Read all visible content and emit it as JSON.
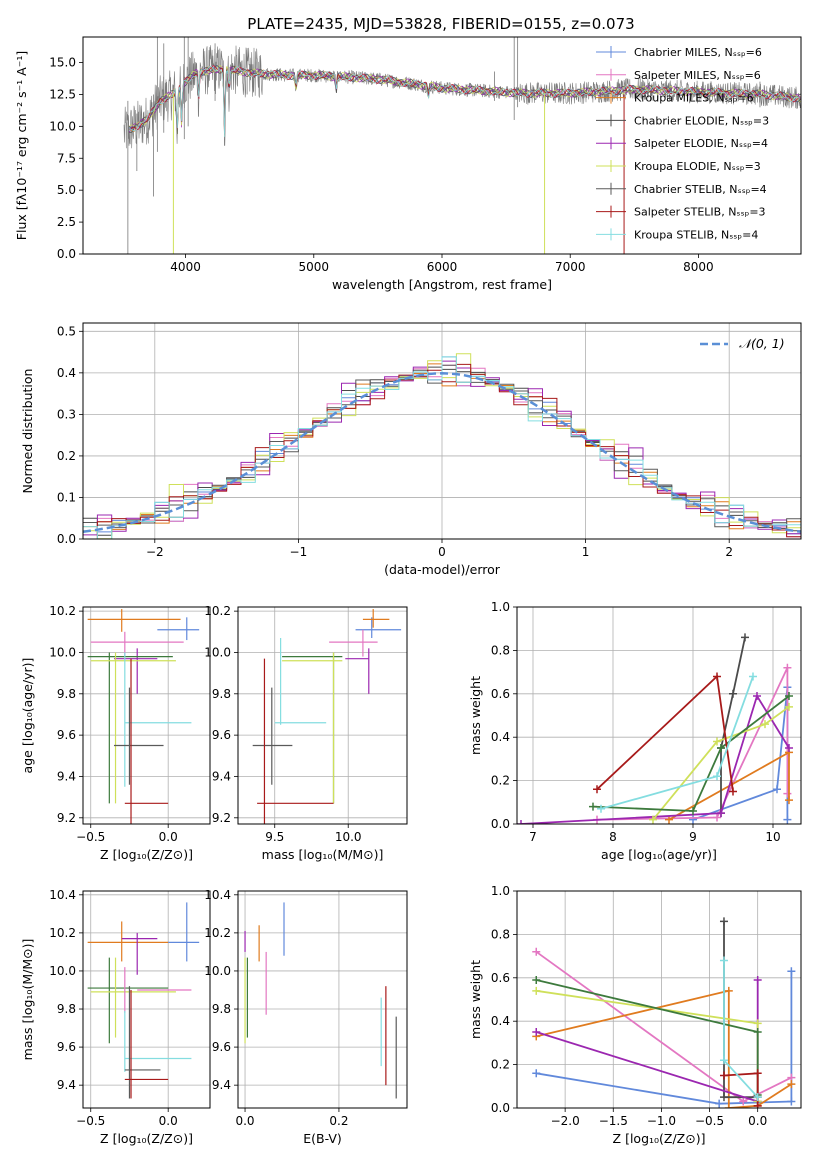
{
  "figure": {
    "title": "PLATE=2435, MJD=53828, FIBERID=0155, z=0.073"
  },
  "styles": {
    "model_colors": [
      "#6189db",
      "#e377c2",
      "#e07b1f",
      "#4b4b4b",
      "#9b27b0",
      "#cfe05a",
      "#5a5a5a",
      "#a81a1a",
      "#84dde0"
    ],
    "extra_colors": [
      "#3d7a3d",
      "#7a7a7a"
    ],
    "gaussian_color": "#5a8fd6"
  },
  "chart_data": [
    {
      "id": "spectrum",
      "type": "line",
      "title": "PLATE=2435, MJD=53828, FIBERID=0155, z=0.073",
      "xlabel": "wavelength [Angstrom, rest frame]",
      "ylabel": "Flux [fλ10⁻¹⁷ erg cm⁻² s⁻¹ A⁻¹]",
      "xlim": [
        3200,
        8800
      ],
      "ylim": [
        0,
        17
      ],
      "xticks": [
        4000,
        5000,
        6000,
        7000,
        8000
      ],
      "yticks": [
        0.0,
        2.5,
        5.0,
        7.5,
        10.0,
        12.5,
        15.0
      ],
      "legend_position": "top-right",
      "data_range": [
        3520,
        8800
      ],
      "continuum": {
        "x": [
          3520,
          3700,
          3800,
          3900,
          4000,
          4100,
          4300,
          4500,
          4800,
          5000,
          5200,
          5500,
          5800,
          6000,
          6300,
          6600,
          7000,
          7500,
          8000,
          8500,
          8800
        ],
        "y": [
          9.5,
          10.5,
          12.0,
          12.5,
          13.5,
          14.3,
          14.5,
          14.2,
          14.0,
          14.0,
          13.9,
          13.7,
          13.3,
          13.0,
          12.8,
          12.6,
          12.6,
          12.9,
          12.7,
          12.5,
          12.2
        ]
      },
      "absorption_lines": [
        {
          "x": 3934,
          "depth": 3.5
        },
        {
          "x": 3969,
          "depth": 3.0
        },
        {
          "x": 4102,
          "depth": 2.0
        },
        {
          "x": 4304,
          "depth": 5.0
        },
        {
          "x": 4340,
          "depth": 1.5
        },
        {
          "x": 4861,
          "depth": 1.0
        },
        {
          "x": 5175,
          "depth": 1.0
        },
        {
          "x": 5893,
          "depth": 0.8
        }
      ],
      "data_spikes": [
        {
          "x": 3550,
          "lo": 0.0,
          "hi": 12.0
        },
        {
          "x": 3620,
          "lo": 6.5,
          "hi": 11.0
        },
        {
          "x": 3750,
          "lo": 4.5,
          "hi": 12.5
        },
        {
          "x": 3780,
          "lo": 8.0,
          "hi": 17.0
        },
        {
          "x": 3830,
          "lo": 9.5,
          "hi": 16.5
        },
        {
          "x": 3990,
          "lo": 9.0,
          "hi": 17.0
        },
        {
          "x": 4020,
          "lo": 10.0,
          "hi": 17.0
        },
        {
          "x": 4230,
          "lo": 12.0,
          "hi": 16.5
        },
        {
          "x": 4480,
          "lo": 12.5,
          "hi": 16.0
        },
        {
          "x": 6410,
          "lo": 12.0,
          "hi": 14.3
        },
        {
          "x": 6563,
          "lo": 10.5,
          "hi": 17.0
        },
        {
          "x": 6590,
          "lo": 11.5,
          "hi": 17.0
        },
        {
          "x": 8480,
          "lo": 11.5,
          "hi": 13.5
        }
      ],
      "model_drops": [
        {
          "x": 3905,
          "color_index": 5
        },
        {
          "x": 6800,
          "color_index": 5
        },
        {
          "x": 7420,
          "color_index": 7
        }
      ],
      "legend": [
        "Chabrier MILES, Nₛₛₚ=6",
        "Salpeter MILES, Nₛₛₚ=6",
        "Kroupa MILES, Nₛₛₚ=6",
        "Chabrier ELODIE, Nₛₛₚ=3",
        "Salpeter ELODIE, Nₛₛₚ=4",
        "Kroupa ELODIE, Nₛₛₚ=3",
        "Chabrier STELIB, Nₛₛₚ=4",
        "Salpeter STELIB, Nₛₛₚ=3",
        "Kroupa STELIB, Nₛₛₚ=4"
      ]
    },
    {
      "id": "residuals",
      "type": "line",
      "xlabel": "(data-model)/error",
      "ylabel": "Normed distribution",
      "xlim": [
        -2.5,
        2.5
      ],
      "ylim": [
        0,
        0.52
      ],
      "xticks": [
        -2,
        -1,
        0,
        1,
        2
      ],
      "yticks": [
        0.0,
        0.1,
        0.2,
        0.3,
        0.4,
        0.5
      ],
      "grid": true,
      "legend_position": "top-right",
      "legend": [
        "𝒩(0, 1)"
      ],
      "histogram_bins": {
        "start": -2.5,
        "width": 0.1,
        "count": 50
      },
      "histogram_perturbations": [
        [
          0.02,
          -0.01,
          0.03,
          0.0,
          -0.02,
          0.04,
          -0.03,
          0.01,
          0.02,
          -0.01
        ],
        [
          -0.02,
          0.03,
          0.0,
          0.04,
          -0.01,
          0.02,
          -0.03,
          0.05,
          0.01,
          -0.02
        ],
        [
          0.01,
          0.02,
          -0.02,
          0.01,
          0.03,
          -0.03,
          0.02,
          0.0,
          -0.01,
          0.03
        ],
        [
          0.03,
          -0.02,
          0.01,
          -0.01,
          0.02,
          0.01,
          -0.02,
          0.03,
          0.04,
          0.0
        ],
        [
          -0.01,
          0.04,
          -0.03,
          0.05,
          -0.02,
          0.03,
          0.02,
          -0.04,
          0.06,
          -0.01
        ],
        [
          0.0,
          -0.03,
          0.02,
          -0.02,
          0.04,
          -0.01,
          0.06,
          0.02,
          -0.03,
          0.01
        ],
        [
          0.02,
          0.01,
          -0.01,
          0.03,
          -0.03,
          0.02,
          0.01,
          -0.02,
          0.0,
          0.04
        ],
        [
          -0.03,
          0.02,
          0.04,
          -0.01,
          0.01,
          -0.02,
          0.03,
          0.02,
          -0.01,
          -0.02
        ],
        [
          0.01,
          -0.04,
          0.0,
          0.02,
          -0.02,
          0.04,
          -0.02,
          0.01,
          0.03,
          0.02
        ]
      ]
    },
    {
      "id": "age-vs-Z",
      "type": "scatter",
      "xlabel": "Z [log₁₀(Z/Z⊙)]",
      "ylabel": "age  [log₁₀(age/yr)]",
      "xlim": [
        -0.55,
        0.27
      ],
      "ylim": [
        9.17,
        10.22
      ],
      "xticks": [
        -0.5,
        0.0
      ],
      "yticks": [
        9.2,
        9.4,
        9.6,
        9.8,
        10.0,
        10.2
      ],
      "points": [
        {
          "x": 0.12,
          "y": 10.11,
          "xlo": -0.07,
          "xhi": 0.2,
          "ylo": 10.06,
          "yhi": 10.17,
          "c": 0
        },
        {
          "x": -0.3,
          "y": 10.16,
          "xlo": -0.52,
          "xhi": 0.08,
          "ylo": 10.1,
          "yhi": 10.21,
          "c": 2
        },
        {
          "x": -0.28,
          "y": 10.05,
          "xlo": -0.5,
          "xhi": 0.1,
          "ylo": 9.98,
          "yhi": 10.1,
          "c": 1
        },
        {
          "x": -0.2,
          "y": 9.97,
          "xlo": -0.35,
          "xhi": -0.07,
          "ylo": 9.8,
          "yhi": 10.02,
          "c": 4
        },
        {
          "x": -0.38,
          "y": 9.98,
          "xlo": -0.52,
          "xhi": 0.03,
          "ylo": 9.27,
          "yhi": 10.0,
          "c": 9
        },
        {
          "x": -0.34,
          "y": 9.96,
          "xlo": -0.5,
          "xhi": 0.05,
          "ylo": 9.27,
          "yhi": 10.0,
          "c": 5
        },
        {
          "x": -0.28,
          "y": 9.66,
          "xlo": -0.28,
          "xhi": 0.15,
          "ylo": 9.35,
          "yhi": 10.0,
          "c": 8
        },
        {
          "x": -0.25,
          "y": 9.55,
          "xlo": -0.35,
          "xhi": -0.03,
          "ylo": 9.36,
          "yhi": 9.83,
          "c": 6
        },
        {
          "x": -0.24,
          "y": 9.27,
          "xlo": -0.28,
          "xhi": 0.0,
          "ylo": 9.17,
          "yhi": 9.97,
          "c": 7
        }
      ]
    },
    {
      "id": "age-vs-mass",
      "type": "scatter",
      "xlabel": "mass [log₁₀(M/M⊙)]",
      "ylabel": "",
      "xlim": [
        9.25,
        10.4
      ],
      "ylim": [
        9.17,
        10.22
      ],
      "xticks": [
        9.5,
        10.0
      ],
      "yticks": [
        9.2,
        9.4,
        9.6,
        9.8,
        10.0,
        10.2
      ],
      "points": [
        {
          "x": 10.16,
          "y": 10.11,
          "xlo": 10.05,
          "xhi": 10.36,
          "ylo": 10.07,
          "yhi": 10.17,
          "c": 0
        },
        {
          "x": 10.17,
          "y": 10.16,
          "xlo": 10.1,
          "xhi": 10.28,
          "ylo": 10.12,
          "yhi": 10.21,
          "c": 2
        },
        {
          "x": 10.1,
          "y": 10.05,
          "xlo": 9.87,
          "xhi": 10.2,
          "ylo": 9.98,
          "yhi": 10.11,
          "c": 1
        },
        {
          "x": 10.14,
          "y": 9.97,
          "xlo": 9.98,
          "xhi": 10.14,
          "ylo": 9.8,
          "yhi": 10.02,
          "c": 4
        },
        {
          "x": 9.9,
          "y": 9.98,
          "xlo": 9.55,
          "xhi": 9.96,
          "ylo": 9.27,
          "yhi": 10.0,
          "c": 9
        },
        {
          "x": 9.9,
          "y": 9.96,
          "xlo": 9.55,
          "xhi": 9.96,
          "ylo": 9.27,
          "yhi": 10.0,
          "c": 5
        },
        {
          "x": 9.54,
          "y": 9.66,
          "xlo": 9.5,
          "xhi": 9.85,
          "ylo": 9.65,
          "yhi": 10.07,
          "c": 8
        },
        {
          "x": 9.48,
          "y": 9.55,
          "xlo": 9.35,
          "xhi": 9.62,
          "ylo": 9.36,
          "yhi": 9.83,
          "c": 6
        },
        {
          "x": 9.43,
          "y": 9.27,
          "xlo": 9.38,
          "xhi": 9.9,
          "ylo": 9.17,
          "yhi": 9.97,
          "c": 7
        }
      ]
    },
    {
      "id": "massweight-vs-age",
      "type": "line",
      "xlabel": "age  [log₁₀(age/yr)]",
      "ylabel": "mass weight",
      "xlim": [
        6.8,
        10.35
      ],
      "ylim": [
        0,
        1
      ],
      "xticks": [
        7,
        8,
        9,
        10
      ],
      "yticks": [
        0.0,
        0.2,
        0.4,
        0.6,
        0.8,
        1.0
      ],
      "grid": true,
      "series": [
        {
          "c": 0,
          "x": [
            9.0,
            10.05,
            10.18,
            10.18
          ],
          "y": [
            0.02,
            0.16,
            0.63,
            0.02
          ]
        },
        {
          "c": 1,
          "x": [
            7.8,
            9.3,
            10.18,
            10.18
          ],
          "y": [
            0.02,
            0.03,
            0.72,
            0.14
          ]
        },
        {
          "c": 2,
          "x": [
            8.7,
            10.2,
            10.2
          ],
          "y": [
            0.02,
            0.33,
            0.11
          ]
        },
        {
          "c": 3,
          "x": [
            9.35,
            9.35,
            9.5,
            9.65
          ],
          "y": [
            0.05,
            0.35,
            0.6,
            0.86
          ]
        },
        {
          "c": 4,
          "x": [
            6.85,
            9.35,
            9.8,
            10.2
          ],
          "y": [
            0.0,
            0.05,
            0.59,
            0.35
          ]
        },
        {
          "c": 5,
          "x": [
            8.5,
            9.3,
            9.9,
            10.2
          ],
          "y": [
            0.02,
            0.38,
            0.46,
            0.54
          ]
        },
        {
          "c": 9,
          "x": [
            7.75,
            9.0,
            9.35,
            10.2
          ],
          "y": [
            0.08,
            0.06,
            0.35,
            0.59
          ]
        },
        {
          "c": 7,
          "x": [
            7.8,
            9.3,
            9.5
          ],
          "y": [
            0.16,
            0.68,
            0.15
          ]
        },
        {
          "c": 8,
          "x": [
            7.85,
            9.3,
            9.75
          ],
          "y": [
            0.07,
            0.22,
            0.68
          ]
        }
      ]
    },
    {
      "id": "mass-vs-Z",
      "type": "scatter",
      "xlabel": "Z [log₁₀(Z/Z⊙)]",
      "ylabel": "mass [log₁₀(M/M⊙)]",
      "xlim": [
        -0.55,
        0.27
      ],
      "ylim": [
        9.28,
        10.42
      ],
      "xticks": [
        -0.5,
        0.0
      ],
      "yticks": [
        9.4,
        9.6,
        9.8,
        10.0,
        10.2,
        10.4
      ],
      "points": [
        {
          "x": 0.12,
          "y": 10.15,
          "xlo": 0.0,
          "xhi": 0.2,
          "ylo": 10.05,
          "yhi": 10.36,
          "c": 0
        },
        {
          "x": -0.3,
          "y": 10.15,
          "xlo": -0.52,
          "xhi": 0.0,
          "ylo": 10.05,
          "yhi": 10.26,
          "c": 2
        },
        {
          "x": -0.2,
          "y": 10.17,
          "xlo": -0.3,
          "xhi": -0.07,
          "ylo": 9.98,
          "yhi": 10.2,
          "c": 4
        },
        {
          "x": -0.38,
          "y": 9.91,
          "xlo": -0.52,
          "xhi": 0.0,
          "ylo": 9.62,
          "yhi": 10.07,
          "c": 9
        },
        {
          "x": -0.34,
          "y": 9.89,
          "xlo": -0.5,
          "xhi": 0.05,
          "ylo": 9.65,
          "yhi": 10.07,
          "c": 5
        },
        {
          "x": -0.28,
          "y": 9.9,
          "xlo": -0.2,
          "xhi": 0.15,
          "ylo": 9.78,
          "yhi": 10.02,
          "c": 1
        },
        {
          "x": -0.28,
          "y": 9.54,
          "xlo": -0.28,
          "xhi": 0.15,
          "ylo": 9.47,
          "yhi": 9.79,
          "c": 8
        },
        {
          "x": -0.25,
          "y": 9.48,
          "xlo": -0.28,
          "xhi": -0.05,
          "ylo": 9.33,
          "yhi": 9.92,
          "c": 6
        },
        {
          "x": -0.24,
          "y": 9.43,
          "xlo": -0.28,
          "xhi": -0.0,
          "ylo": 9.33,
          "yhi": 9.9,
          "c": 7
        }
      ]
    },
    {
      "id": "mass-vs-EBV",
      "type": "scatter",
      "xlabel": "E(B-V)",
      "ylabel": "",
      "xlim": [
        -0.015,
        0.345
      ],
      "ylim": [
        9.28,
        10.42
      ],
      "xticks": [
        0.0,
        0.2
      ],
      "yticks": [
        9.4,
        9.6,
        9.8,
        10.0,
        10.2,
        10.4
      ],
      "points": [
        {
          "x": 0.083,
          "y": 10.22,
          "ylo": 10.08,
          "yhi": 10.36,
          "c": 0
        },
        {
          "x": 0.03,
          "y": 10.15,
          "ylo": 10.05,
          "yhi": 10.24,
          "c": 2
        },
        {
          "x": 0.0,
          "y": 10.16,
          "ylo": 10.1,
          "yhi": 10.21,
          "c": 4
        },
        {
          "x": 0.0,
          "y": 9.9,
          "ylo": 9.62,
          "yhi": 10.07,
          "c": 5
        },
        {
          "x": 0.005,
          "y": 9.88,
          "ylo": 9.65,
          "yhi": 10.07,
          "c": 9
        },
        {
          "x": 0.045,
          "y": 9.93,
          "ylo": 9.77,
          "yhi": 10.1,
          "c": 1
        },
        {
          "x": 0.29,
          "y": 9.68,
          "ylo": 9.5,
          "yhi": 9.86,
          "c": 8
        },
        {
          "x": 0.3,
          "y": 9.65,
          "ylo": 9.4,
          "yhi": 9.92,
          "c": 7
        },
        {
          "x": 0.322,
          "y": 9.55,
          "ylo": 9.33,
          "yhi": 9.76,
          "c": 6
        }
      ]
    },
    {
      "id": "massweight-vs-Z",
      "type": "line",
      "xlabel": "Z [log₁₀(Z/Z⊙)]",
      "ylabel": "mass weight",
      "xlim": [
        -2.5,
        0.45
      ],
      "ylim": [
        0,
        1
      ],
      "xticks": [
        -2.0,
        -1.5,
        -1.0,
        -0.5,
        0.0
      ],
      "yticks": [
        0.0,
        0.2,
        0.4,
        0.6,
        0.8,
        1.0
      ],
      "grid": true,
      "series": [
        {
          "c": 0,
          "x": [
            -2.3,
            -0.4,
            0.35,
            0.35
          ],
          "y": [
            0.16,
            0.02,
            0.03,
            0.63
          ]
        },
        {
          "c": 1,
          "x": [
            -2.3,
            -0.15,
            0.35
          ],
          "y": [
            0.72,
            0.03,
            0.14
          ]
        },
        {
          "c": 2,
          "x": [
            -2.3,
            -0.3,
            -0.3,
            0.0,
            0.35
          ],
          "y": [
            0.33,
            0.54,
            0.0,
            0.01,
            0.11
          ]
        },
        {
          "c": 3,
          "x": [
            -0.35,
            -0.35,
            0.0
          ],
          "y": [
            0.86,
            0.05,
            0.05
          ]
        },
        {
          "c": 4,
          "x": [
            -2.3,
            0.0,
            0.0
          ],
          "y": [
            0.35,
            0.03,
            0.59
          ]
        },
        {
          "c": 5,
          "x": [
            -2.3,
            0.0,
            0.0
          ],
          "y": [
            0.54,
            0.39,
            0.03
          ]
        },
        {
          "c": 9,
          "x": [
            -2.3,
            0.0,
            0.0
          ],
          "y": [
            0.59,
            0.35,
            0.06
          ]
        },
        {
          "c": 7,
          "x": [
            -0.35,
            0.0,
            0.0
          ],
          "y": [
            0.15,
            0.16,
            0.01
          ]
        },
        {
          "c": 8,
          "x": [
            -0.35,
            -0.35,
            0.0
          ],
          "y": [
            0.68,
            0.22,
            0.05
          ]
        }
      ]
    }
  ]
}
